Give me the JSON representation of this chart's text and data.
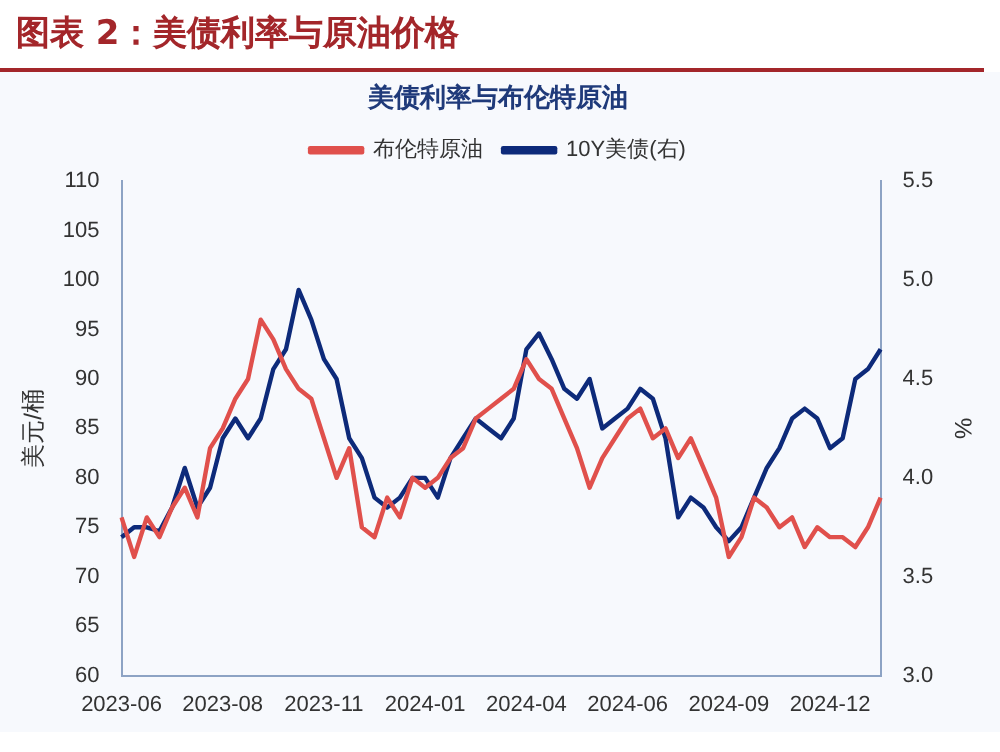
{
  "chart_data": {
    "type": "line",
    "title": "美债利率与布伦特原油",
    "ylabel": "美元/桶",
    "y2label": "%",
    "annotations": [
      "图表 2：美债利率与原油价格"
    ],
    "categories": [
      "2023-06",
      null,
      null,
      null,
      null,
      null,
      null,
      null,
      "2023-08",
      null,
      null,
      null,
      null,
      null,
      null,
      null,
      "2023-11",
      null,
      null,
      null,
      null,
      null,
      null,
      null,
      "2024-01",
      null,
      null,
      null,
      null,
      null,
      null,
      null,
      "2024-04",
      null,
      null,
      null,
      null,
      null,
      null,
      null,
      "2024-06",
      null,
      null,
      null,
      null,
      null,
      null,
      null,
      "2024-09",
      null,
      null,
      null,
      null,
      null,
      null,
      null,
      "2024-12",
      null,
      null,
      null,
      null
    ],
    "series": [
      {
        "name": "布伦特原油",
        "color": "#e0504c",
        "values": [
          76,
          72,
          76,
          74,
          77,
          79,
          76,
          83,
          85,
          88,
          90,
          96,
          94,
          91,
          89,
          88,
          84,
          80,
          83,
          75,
          74,
          78,
          76,
          80,
          79,
          80,
          82,
          83,
          86,
          87,
          88,
          89,
          92,
          90,
          89,
          86,
          83,
          79,
          82,
          84,
          86,
          87,
          84,
          85,
          82,
          84,
          81,
          78,
          72,
          74,
          78,
          77,
          75,
          76,
          73,
          75,
          74,
          74,
          73,
          75,
          78
        ]
      },
      {
        "name": "10Y美债(右)",
        "color": "#0d2a7a",
        "axis": "y2",
        "values": [
          3.7,
          3.75,
          3.75,
          3.73,
          3.85,
          4.05,
          3.85,
          3.95,
          4.2,
          4.3,
          4.2,
          4.3,
          4.55,
          4.65,
          4.95,
          4.8,
          4.6,
          4.5,
          4.2,
          4.1,
          3.9,
          3.85,
          3.9,
          4.0,
          4.0,
          3.9,
          4.1,
          4.2,
          4.3,
          4.25,
          4.2,
          4.3,
          4.65,
          4.73,
          4.6,
          4.45,
          4.4,
          4.5,
          4.25,
          4.3,
          4.35,
          4.45,
          4.4,
          4.2,
          3.8,
          3.9,
          3.85,
          3.75,
          3.68,
          3.75,
          3.9,
          4.05,
          4.15,
          4.3,
          4.35,
          4.3,
          4.15,
          4.2,
          4.5,
          4.55,
          4.65
        ]
      }
    ],
    "ylim": [
      60,
      110
    ],
    "yticks": [
      60,
      65,
      70,
      75,
      80,
      85,
      90,
      95,
      100,
      105,
      110
    ],
    "y2lim": [
      3,
      5.5
    ],
    "y2ticks": [
      {
        "value": 3,
        "label": "3.0"
      },
      {
        "value": 3.5,
        "label": "3.5"
      },
      {
        "value": 4,
        "label": "4.0"
      },
      {
        "value": 4.5,
        "label": "4.5"
      },
      {
        "value": 5,
        "label": "5.0"
      },
      {
        "value": 5.5,
        "label": "5.5"
      }
    ],
    "grid": false,
    "legend": "top",
    "marker": "none",
    "line_style": "solid"
  }
}
